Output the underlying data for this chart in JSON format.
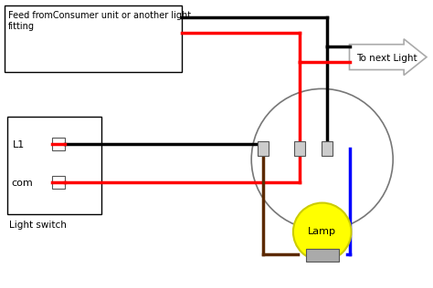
{
  "bg_color": "#ffffff",
  "feed_label": "Feed fromConsumer unit or another light\nfitting",
  "next_light_label": "To next Light",
  "lamp_label": "Lamp",
  "switch_label": "Light switch",
  "L1_label": "L1",
  "com_label": "com"
}
